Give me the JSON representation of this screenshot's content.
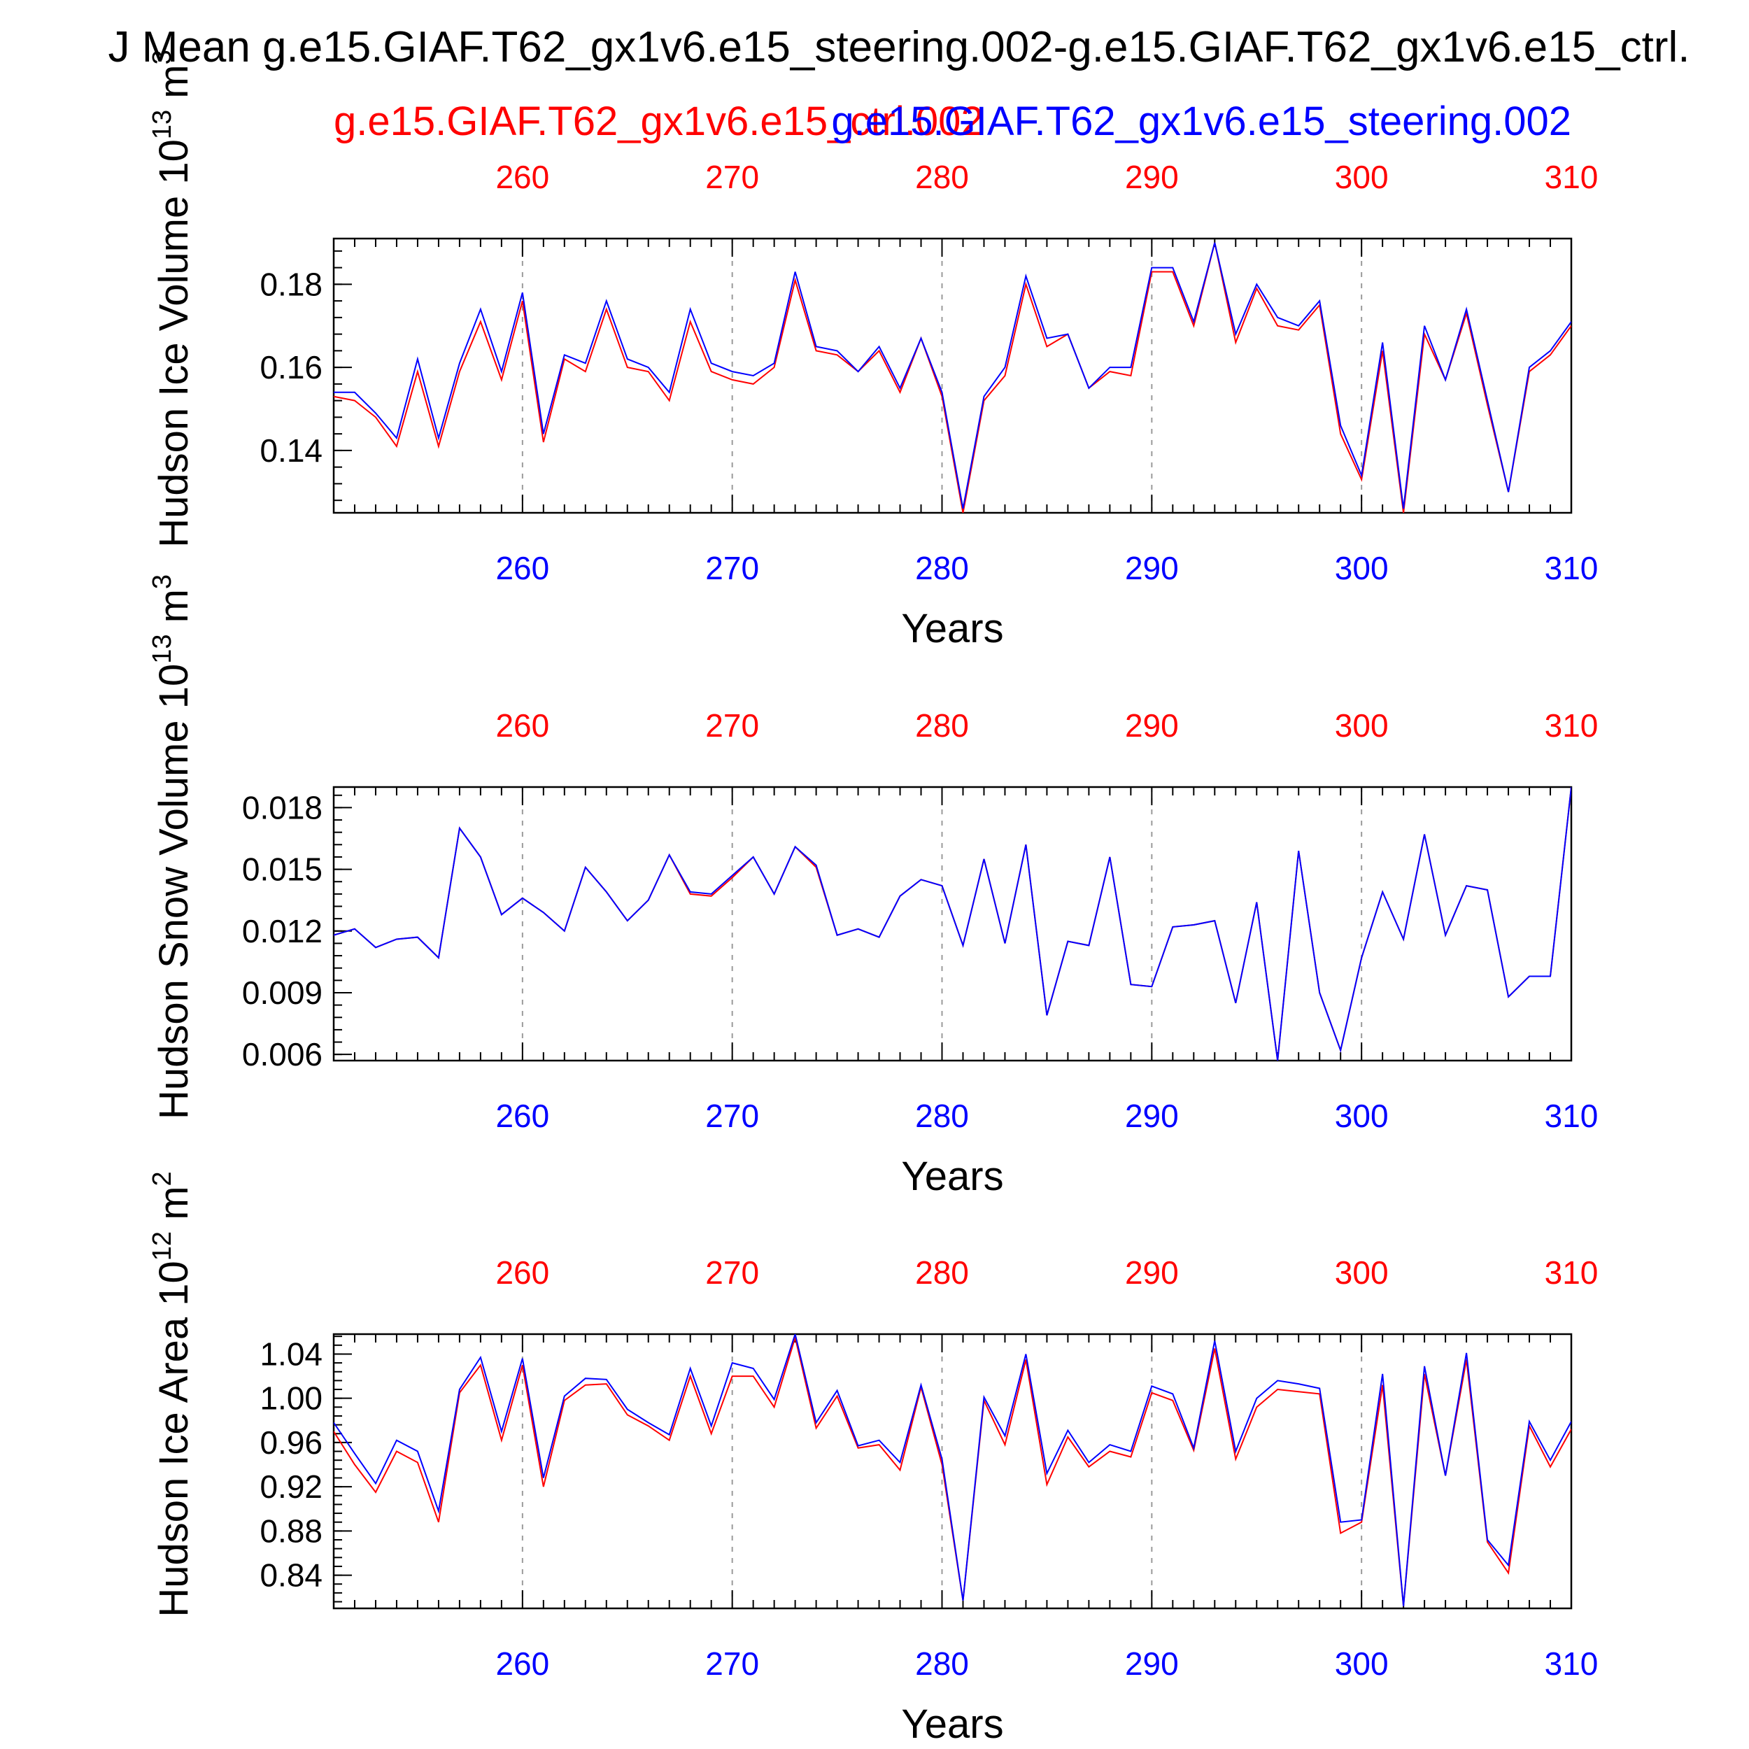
{
  "title": "J Mean g.e15.GIAF.T62_gx1v6.e15_steering.002-g.e15.GIAF.T62_gx1v6.e15_ctrl.",
  "legend": {
    "ctrl_label": "g.e15.GIAF.T62_gx1v6.e15_ctrl.002",
    "steering_label": "g.e15.GIAF.T62_gx1v6.e15_steering.002"
  },
  "colors": {
    "ctrl": "#ff0000",
    "steering": "#0000ff",
    "axis": "#000000",
    "grid": "#9a9a9a"
  },
  "chart_data": [
    {
      "type": "line",
      "ylabel": "Hudson Ice Volume 10",
      "ylabel_exp": "13",
      "ylabel_unit": "m",
      "ylabel_unit_exp": "3",
      "xlabel": "Years",
      "xlim": [
        251,
        310
      ],
      "ylim": [
        0.125,
        0.191
      ],
      "yticks": [
        "0.14",
        "0.16",
        "0.18"
      ],
      "ytick_values": [
        0.14,
        0.16,
        0.18
      ],
      "xticks": [
        "260",
        "270",
        "280",
        "290",
        "300",
        "310"
      ],
      "xtick_values": [
        260,
        270,
        280,
        290,
        300,
        310
      ],
      "grid_x": "dashed",
      "x": [
        251,
        252,
        253,
        254,
        255,
        256,
        257,
        258,
        259,
        260,
        261,
        262,
        263,
        264,
        265,
        266,
        267,
        268,
        269,
        270,
        271,
        272,
        273,
        274,
        275,
        276,
        277,
        278,
        279,
        280,
        281,
        282,
        283,
        284,
        285,
        286,
        287,
        288,
        289,
        290,
        291,
        292,
        293,
        294,
        295,
        296,
        297,
        298,
        299,
        300,
        301,
        302,
        303,
        304,
        305,
        306,
        307,
        308,
        309,
        310
      ],
      "series": [
        {
          "name": "g.e15.GIAF.T62_gx1v6.e15_ctrl.002",
          "values": [
            0.153,
            0.152,
            0.148,
            0.141,
            0.159,
            0.141,
            0.159,
            0.171,
            0.157,
            0.176,
            0.142,
            0.162,
            0.159,
            0.174,
            0.16,
            0.159,
            0.152,
            0.171,
            0.159,
            0.157,
            0.156,
            0.16,
            0.181,
            0.164,
            0.163,
            0.159,
            0.164,
            0.154,
            0.167,
            0.153,
            0.125,
            0.152,
            0.158,
            0.18,
            0.165,
            0.168,
            0.155,
            0.159,
            0.158,
            0.183,
            0.183,
            0.17,
            0.19,
            0.166,
            0.179,
            0.17,
            0.169,
            0.175,
            0.144,
            0.133,
            0.164,
            0.125,
            0.168,
            0.157,
            0.173,
            0.151,
            0.13,
            0.159,
            0.163,
            0.17
          ]
        },
        {
          "name": "g.e15.GIAF.T62_gx1v6.e15_steering.002",
          "values": [
            0.154,
            0.154,
            0.149,
            0.143,
            0.162,
            0.143,
            0.161,
            0.174,
            0.159,
            0.178,
            0.144,
            0.163,
            0.161,
            0.176,
            0.162,
            0.16,
            0.154,
            0.174,
            0.161,
            0.159,
            0.158,
            0.161,
            0.183,
            0.165,
            0.164,
            0.159,
            0.165,
            0.155,
            0.167,
            0.154,
            0.126,
            0.153,
            0.16,
            0.182,
            0.167,
            0.168,
            0.155,
            0.16,
            0.16,
            0.184,
            0.184,
            0.171,
            0.19,
            0.168,
            0.18,
            0.172,
            0.17,
            0.176,
            0.146,
            0.134,
            0.166,
            0.126,
            0.17,
            0.157,
            0.174,
            0.152,
            0.13,
            0.16,
            0.164,
            0.171
          ]
        }
      ]
    },
    {
      "type": "line",
      "ylabel": "Hudson Snow Volume 10",
      "ylabel_exp": "13",
      "ylabel_unit": "m",
      "ylabel_unit_exp": "3",
      "xlabel": "Years",
      "xlim": [
        251,
        310
      ],
      "ylim": [
        0.0057,
        0.019
      ],
      "yticks": [
        "0.006",
        "0.009",
        "0.012",
        "0.015",
        "0.018"
      ],
      "ytick_values": [
        0.006,
        0.009,
        0.012,
        0.015,
        0.018
      ],
      "xticks": [
        "260",
        "270",
        "280",
        "290",
        "300",
        "310"
      ],
      "xtick_values": [
        260,
        270,
        280,
        290,
        300,
        310
      ],
      "grid_x": "dashed",
      "x": [
        251,
        252,
        253,
        254,
        255,
        256,
        257,
        258,
        259,
        260,
        261,
        262,
        263,
        264,
        265,
        266,
        267,
        268,
        269,
        270,
        271,
        272,
        273,
        274,
        275,
        276,
        277,
        278,
        279,
        280,
        281,
        282,
        283,
        284,
        285,
        286,
        287,
        288,
        289,
        290,
        291,
        292,
        293,
        294,
        295,
        296,
        297,
        298,
        299,
        300,
        301,
        302,
        303,
        304,
        305,
        306,
        307,
        308,
        309,
        310
      ],
      "series": [
        {
          "name": "g.e15.GIAF.T62_gx1v6.e15_ctrl.002",
          "values": [
            0.0118,
            0.0121,
            0.0112,
            0.0116,
            0.0117,
            0.0107,
            0.017,
            0.0156,
            0.0128,
            0.0136,
            0.0129,
            0.012,
            0.0151,
            0.0139,
            0.0125,
            0.0135,
            0.0157,
            0.0138,
            0.0137,
            0.0146,
            0.0156,
            0.0138,
            0.0161,
            0.0151,
            0.0118,
            0.0121,
            0.0117,
            0.0137,
            0.0145,
            0.0142,
            0.0113,
            0.0155,
            0.0114,
            0.0162,
            0.0079,
            0.0115,
            0.0113,
            0.0156,
            0.0094,
            0.0093,
            0.0122,
            0.0123,
            0.0125,
            0.0085,
            0.0134,
            0.0057,
            0.0159,
            0.009,
            0.0062,
            0.0107,
            0.0139,
            0.0116,
            0.0167,
            0.0118,
            0.0142,
            0.014,
            0.0088,
            0.0098,
            0.0098,
            0.019
          ]
        },
        {
          "name": "g.e15.GIAF.T62_gx1v6.e15_steering.002",
          "values": [
            0.0118,
            0.0121,
            0.0112,
            0.0116,
            0.0117,
            0.0107,
            0.017,
            0.0156,
            0.0128,
            0.0136,
            0.0129,
            0.012,
            0.0151,
            0.0139,
            0.0125,
            0.0135,
            0.0157,
            0.0139,
            0.0138,
            0.0147,
            0.0156,
            0.0138,
            0.0161,
            0.0152,
            0.0118,
            0.0121,
            0.0117,
            0.0137,
            0.0145,
            0.0142,
            0.0113,
            0.0155,
            0.0114,
            0.0162,
            0.0079,
            0.0115,
            0.0113,
            0.0156,
            0.0094,
            0.0093,
            0.0122,
            0.0123,
            0.0125,
            0.0085,
            0.0134,
            0.0057,
            0.0159,
            0.009,
            0.0062,
            0.0107,
            0.0139,
            0.0116,
            0.0167,
            0.0118,
            0.0142,
            0.014,
            0.0088,
            0.0098,
            0.0098,
            0.019
          ]
        }
      ]
    },
    {
      "type": "line",
      "ylabel": "Hudson Ice Area 10",
      "ylabel_exp": "12",
      "ylabel_unit": "m",
      "ylabel_unit_exp": "2",
      "xlabel": "Years",
      "xlim": [
        251,
        310
      ],
      "ylim": [
        0.81,
        1.058
      ],
      "yticks": [
        "0.84",
        "0.88",
        "0.92",
        "0.96",
        "1.00",
        "1.04"
      ],
      "ytick_values": [
        0.84,
        0.88,
        0.92,
        0.96,
        1.0,
        1.04
      ],
      "xticks": [
        "260",
        "270",
        "280",
        "290",
        "300",
        "310"
      ],
      "xtick_values": [
        260,
        270,
        280,
        290,
        300,
        310
      ],
      "grid_x": "dashed",
      "x": [
        251,
        252,
        253,
        254,
        255,
        256,
        257,
        258,
        259,
        260,
        261,
        262,
        263,
        264,
        265,
        266,
        267,
        268,
        269,
        270,
        271,
        272,
        273,
        274,
        275,
        276,
        277,
        278,
        279,
        280,
        281,
        282,
        283,
        284,
        285,
        286,
        287,
        288,
        289,
        290,
        291,
        292,
        293,
        294,
        295,
        296,
        297,
        298,
        299,
        300,
        301,
        302,
        303,
        304,
        305,
        306,
        307,
        308,
        309,
        310
      ],
      "series": [
        {
          "name": "g.e15.GIAF.T62_gx1v6.e15_ctrl.002",
          "values": [
            0.97,
            0.94,
            0.915,
            0.952,
            0.942,
            0.888,
            1.005,
            1.03,
            0.962,
            1.03,
            0.92,
            0.998,
            1.012,
            1.013,
            0.985,
            0.975,
            0.962,
            1.02,
            0.968,
            1.02,
            1.02,
            0.992,
            1.055,
            0.973,
            1.002,
            0.955,
            0.958,
            0.935,
            1.01,
            0.94,
            0.817,
            0.998,
            0.958,
            1.035,
            0.922,
            0.965,
            0.938,
            0.952,
            0.947,
            1.005,
            0.998,
            0.953,
            1.045,
            0.945,
            0.992,
            1.008,
            1.006,
            1.004,
            0.878,
            0.888,
            1.012,
            0.812,
            1.022,
            0.93,
            1.035,
            0.87,
            0.842,
            0.975,
            0.938,
            0.972
          ]
        },
        {
          "name": "g.e15.GIAF.T62_gx1v6.e15_steering.002",
          "values": [
            0.978,
            0.95,
            0.923,
            0.962,
            0.952,
            0.898,
            1.008,
            1.037,
            0.97,
            1.036,
            0.928,
            1.002,
            1.018,
            1.017,
            0.99,
            0.978,
            0.967,
            1.027,
            0.975,
            1.032,
            1.027,
            0.999,
            1.058,
            0.978,
            1.007,
            0.957,
            0.962,
            0.942,
            1.012,
            0.945,
            0.817,
            1.001,
            0.966,
            1.04,
            0.932,
            0.971,
            0.942,
            0.958,
            0.952,
            1.011,
            1.004,
            0.955,
            1.052,
            0.952,
            1.0,
            1.016,
            1.013,
            1.009,
            0.888,
            0.89,
            1.022,
            0.812,
            1.029,
            0.93,
            1.041,
            0.872,
            0.849,
            0.979,
            0.944,
            0.979
          ]
        }
      ]
    }
  ]
}
